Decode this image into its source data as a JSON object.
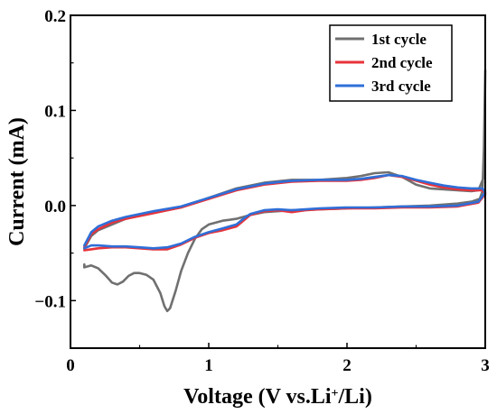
{
  "chart_data": {
    "type": "line",
    "title": "",
    "xlabel_main": "Voltage (V vs.Li",
    "xlabel_sup": "+",
    "xlabel_end": "/Li)",
    "ylabel": "Current (mA)",
    "xlim": [
      0,
      3
    ],
    "ylim": [
      -0.15,
      0.2
    ],
    "xticks": [
      0,
      1,
      2,
      3
    ],
    "xtick_labels": [
      "0",
      "1",
      "2",
      "3"
    ],
    "yticks": [
      -0.1,
      0.0,
      0.1,
      0.2
    ],
    "ytick_labels": [
      "−0.1",
      "0.0",
      "0.1",
      "0.2"
    ],
    "grid": false,
    "legend_position": "top-right",
    "series": [
      {
        "name": "1st cycle",
        "color": "#707070",
        "points": [
          [
            0.1,
            -0.062
          ],
          [
            0.1,
            -0.065
          ],
          [
            0.15,
            -0.063
          ],
          [
            0.2,
            -0.066
          ],
          [
            0.25,
            -0.073
          ],
          [
            0.3,
            -0.081
          ],
          [
            0.34,
            -0.083
          ],
          [
            0.38,
            -0.08
          ],
          [
            0.42,
            -0.074
          ],
          [
            0.46,
            -0.071
          ],
          [
            0.5,
            -0.071
          ],
          [
            0.55,
            -0.073
          ],
          [
            0.6,
            -0.078
          ],
          [
            0.65,
            -0.092
          ],
          [
            0.68,
            -0.106
          ],
          [
            0.7,
            -0.111
          ],
          [
            0.72,
            -0.108
          ],
          [
            0.76,
            -0.09
          ],
          [
            0.8,
            -0.069
          ],
          [
            0.85,
            -0.05
          ],
          [
            0.9,
            -0.035
          ],
          [
            0.95,
            -0.025
          ],
          [
            1.0,
            -0.02
          ],
          [
            1.1,
            -0.016
          ],
          [
            1.2,
            -0.014
          ],
          [
            1.3,
            -0.01
          ],
          [
            1.4,
            -0.007
          ],
          [
            1.6,
            -0.005
          ],
          [
            1.8,
            -0.004
          ],
          [
            2.0,
            -0.003
          ],
          [
            2.2,
            -0.002
          ],
          [
            2.4,
            -0.001
          ],
          [
            2.6,
            0.0
          ],
          [
            2.8,
            0.002
          ],
          [
            2.9,
            0.004
          ],
          [
            2.96,
            0.007
          ],
          [
            2.98,
            0.015
          ],
          [
            2.99,
            0.06
          ],
          [
            3.0,
            0.142
          ],
          [
            2.99,
            0.03
          ],
          [
            2.95,
            0.016
          ],
          [
            2.9,
            0.015
          ],
          [
            2.8,
            0.016
          ],
          [
            2.7,
            0.017
          ],
          [
            2.6,
            0.018
          ],
          [
            2.5,
            0.022
          ],
          [
            2.4,
            0.03
          ],
          [
            2.3,
            0.035
          ],
          [
            2.2,
            0.034
          ],
          [
            2.1,
            0.031
          ],
          [
            2.0,
            0.029
          ],
          [
            1.8,
            0.027
          ],
          [
            1.6,
            0.027
          ],
          [
            1.4,
            0.024
          ],
          [
            1.2,
            0.018
          ],
          [
            1.0,
            0.008
          ],
          [
            0.8,
            -0.002
          ],
          [
            0.6,
            -0.007
          ],
          [
            0.5,
            -0.01
          ],
          [
            0.4,
            -0.014
          ],
          [
            0.3,
            -0.02
          ],
          [
            0.2,
            -0.026
          ],
          [
            0.15,
            -0.032
          ],
          [
            0.1,
            -0.045
          ]
        ]
      },
      {
        "name": "2nd cycle",
        "color": "#e8333a",
        "points": [
          [
            0.1,
            -0.047
          ],
          [
            0.15,
            -0.046
          ],
          [
            0.2,
            -0.045
          ],
          [
            0.3,
            -0.044
          ],
          [
            0.4,
            -0.044
          ],
          [
            0.5,
            -0.045
          ],
          [
            0.6,
            -0.046
          ],
          [
            0.7,
            -0.046
          ],
          [
            0.8,
            -0.041
          ],
          [
            0.9,
            -0.034
          ],
          [
            1.0,
            -0.029
          ],
          [
            1.1,
            -0.026
          ],
          [
            1.2,
            -0.022
          ],
          [
            1.25,
            -0.016
          ],
          [
            1.3,
            -0.01
          ],
          [
            1.4,
            -0.006
          ],
          [
            1.5,
            -0.005
          ],
          [
            1.6,
            -0.007
          ],
          [
            1.7,
            -0.005
          ],
          [
            1.8,
            -0.004
          ],
          [
            2.0,
            -0.003
          ],
          [
            2.2,
            -0.003
          ],
          [
            2.4,
            -0.002
          ],
          [
            2.6,
            -0.002
          ],
          [
            2.8,
            -0.001
          ],
          [
            2.95,
            0.003
          ],
          [
            3.0,
            0.012
          ],
          [
            2.98,
            0.016
          ],
          [
            2.9,
            0.016
          ],
          [
            2.8,
            0.017
          ],
          [
            2.7,
            0.019
          ],
          [
            2.6,
            0.022
          ],
          [
            2.5,
            0.026
          ],
          [
            2.4,
            0.03
          ],
          [
            2.3,
            0.032
          ],
          [
            2.2,
            0.029
          ],
          [
            2.1,
            0.027
          ],
          [
            2.0,
            0.026
          ],
          [
            1.8,
            0.026
          ],
          [
            1.6,
            0.025
          ],
          [
            1.4,
            0.022
          ],
          [
            1.2,
            0.016
          ],
          [
            1.0,
            0.007
          ],
          [
            0.8,
            -0.002
          ],
          [
            0.6,
            -0.008
          ],
          [
            0.4,
            -0.014
          ],
          [
            0.3,
            -0.018
          ],
          [
            0.2,
            -0.025
          ],
          [
            0.15,
            -0.03
          ],
          [
            0.1,
            -0.044
          ]
        ]
      },
      {
        "name": "3rd cycle",
        "color": "#2f6fd8",
        "points": [
          [
            0.1,
            -0.045
          ],
          [
            0.15,
            -0.042
          ],
          [
            0.2,
            -0.042
          ],
          [
            0.3,
            -0.043
          ],
          [
            0.4,
            -0.043
          ],
          [
            0.5,
            -0.044
          ],
          [
            0.6,
            -0.045
          ],
          [
            0.7,
            -0.044
          ],
          [
            0.8,
            -0.04
          ],
          [
            0.9,
            -0.033
          ],
          [
            1.0,
            -0.028
          ],
          [
            1.1,
            -0.024
          ],
          [
            1.2,
            -0.02
          ],
          [
            1.25,
            -0.014
          ],
          [
            1.3,
            -0.009
          ],
          [
            1.4,
            -0.005
          ],
          [
            1.5,
            -0.004
          ],
          [
            1.6,
            -0.005
          ],
          [
            1.7,
            -0.004
          ],
          [
            1.8,
            -0.003
          ],
          [
            2.0,
            -0.002
          ],
          [
            2.2,
            -0.002
          ],
          [
            2.4,
            -0.001
          ],
          [
            2.6,
            -0.001
          ],
          [
            2.8,
            0.0
          ],
          [
            2.95,
            0.004
          ],
          [
            3.0,
            0.014
          ],
          [
            2.98,
            0.018
          ],
          [
            2.9,
            0.018
          ],
          [
            2.8,
            0.019
          ],
          [
            2.7,
            0.021
          ],
          [
            2.6,
            0.024
          ],
          [
            2.5,
            0.027
          ],
          [
            2.4,
            0.031
          ],
          [
            2.3,
            0.032
          ],
          [
            2.2,
            0.03
          ],
          [
            2.1,
            0.028
          ],
          [
            2.0,
            0.027
          ],
          [
            1.8,
            0.027
          ],
          [
            1.6,
            0.026
          ],
          [
            1.4,
            0.023
          ],
          [
            1.2,
            0.017
          ],
          [
            1.0,
            0.008
          ],
          [
            0.8,
            -0.001
          ],
          [
            0.6,
            -0.006
          ],
          [
            0.4,
            -0.012
          ],
          [
            0.3,
            -0.016
          ],
          [
            0.2,
            -0.022
          ],
          [
            0.15,
            -0.028
          ],
          [
            0.1,
            -0.042
          ]
        ]
      }
    ]
  }
}
